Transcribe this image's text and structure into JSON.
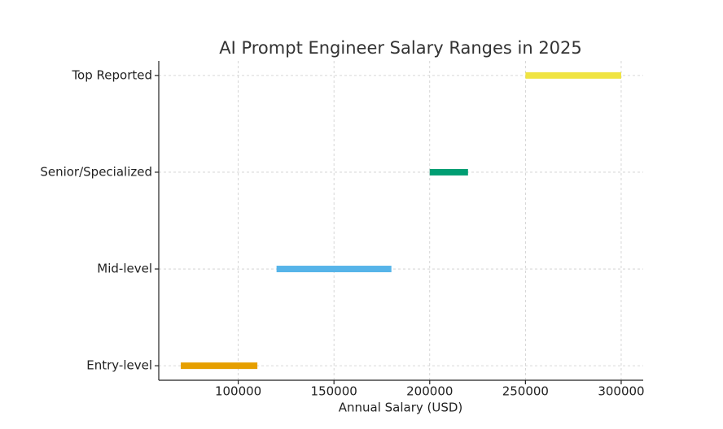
{
  "chart_data": {
    "type": "range",
    "title": "AI Prompt Engineer Salary Ranges in 2025",
    "xlabel": "Annual Salary (USD)",
    "categories": [
      "Entry-level",
      "Mid-level",
      "Senior/Specialized",
      "Top Reported"
    ],
    "values": [
      [
        70000,
        110000
      ],
      [
        120000,
        180000
      ],
      [
        200000,
        220000
      ],
      [
        250000,
        300000
      ]
    ],
    "colors": [
      "#E69F00",
      "#56B4E9",
      "#009E73",
      "#F0E442"
    ],
    "xlim": [
      58500,
      311500
    ],
    "xticks": [
      100000,
      150000,
      200000,
      250000,
      300000
    ],
    "grid": true
  }
}
